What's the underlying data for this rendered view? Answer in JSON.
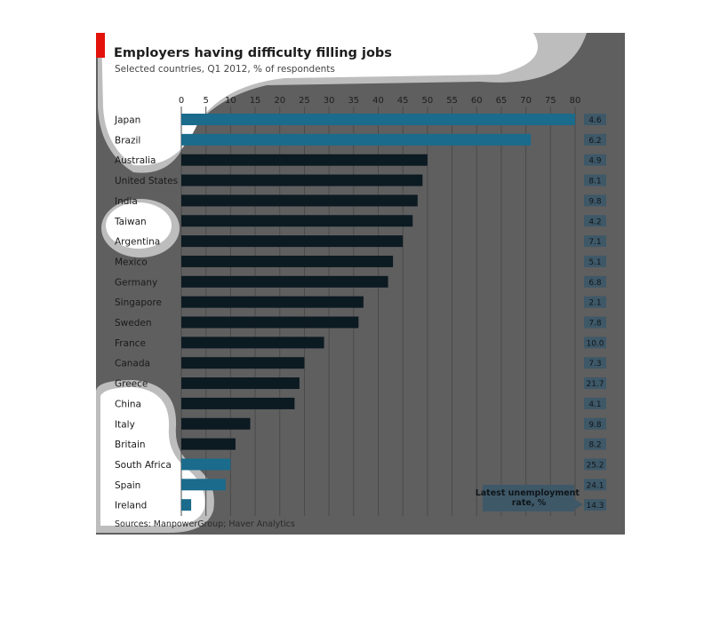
{
  "chart_data": {
    "type": "bar",
    "orientation": "horizontal",
    "title": "Employers having difficulty filling jobs",
    "subtitle": "Selected countries, Q1 2012, % of respondents",
    "source": "Sources: ManpowerGroup; Haver Analytics",
    "xlim": [
      0,
      80
    ],
    "xticks": [
      0,
      5,
      10,
      15,
      20,
      25,
      30,
      35,
      40,
      45,
      50,
      55,
      60,
      65,
      70,
      75,
      80
    ],
    "tick_position": "top",
    "grid": true,
    "categories": [
      "Japan",
      "Brazil",
      "Australia",
      "United States",
      "India",
      "Taiwan",
      "Argentina",
      "Mexico",
      "Germany",
      "Singapore",
      "Sweden",
      "France",
      "Canada",
      "Greece",
      "China",
      "Italy",
      "Britain",
      "South Africa",
      "Spain",
      "Ireland"
    ],
    "values": [
      80,
      71,
      50,
      49,
      48,
      47,
      45,
      43,
      42,
      37,
      36,
      29,
      25,
      24,
      23,
      14,
      11,
      10,
      9,
      2
    ],
    "unemployment": {
      "label": "Latest unemployment rate, %",
      "values": [
        "4.6",
        "6.2",
        "4.9",
        "8.1",
        "9.8",
        "4.2",
        "7.1",
        "5.1",
        "6.8",
        "2.1",
        "7.8",
        "10.0",
        "7.3",
        "21.7",
        "4.1",
        "9.8",
        "8.2",
        "25.2",
        "24.1",
        "14.3"
      ]
    },
    "colors": {
      "bar": "#0c1a22",
      "bar_highlight": "#1a6b8c",
      "background": "#5f5f5f",
      "accent": "#e3120b",
      "badge": "#3e5868"
    }
  }
}
